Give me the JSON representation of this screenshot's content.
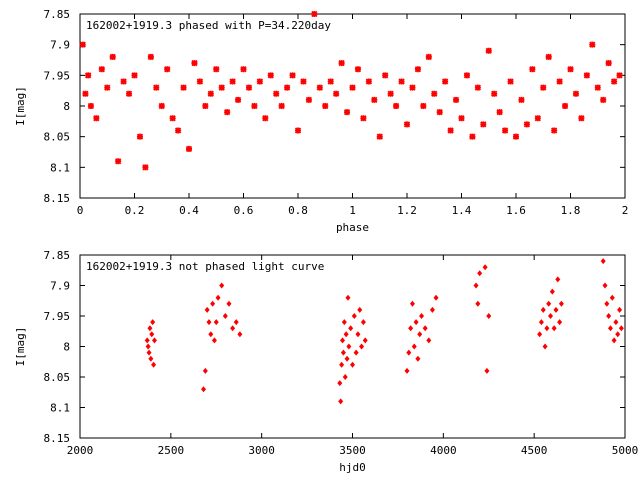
{
  "chart_data": [
    {
      "type": "scatter",
      "title": "162002+1919.3 phased with P=34.220day",
      "xlabel": "phase",
      "ylabel": "I[mag]",
      "xlim": [
        0,
        2
      ],
      "ylim": [
        7.85,
        8.15
      ],
      "y_inverted": true,
      "x_ticks": [
        0,
        0.2,
        0.4,
        0.6,
        0.8,
        1,
        1.2,
        1.4,
        1.6,
        1.8,
        2
      ],
      "x_tick_labels": [
        "0",
        "0.2",
        "0.4",
        "0.6",
        "0.8",
        "1",
        "1.2",
        "1.4",
        "1.6",
        "1.8",
        "2"
      ],
      "y_ticks": [
        7.85,
        7.9,
        7.95,
        8,
        8.05,
        8.1,
        8.15
      ],
      "y_tick_labels": [
        "7.85",
        "7.9",
        "7.95",
        "8",
        "8.05",
        "8.1",
        "8.15"
      ],
      "marker": "x-cross",
      "color": "#ff0000",
      "points": [
        [
          0.01,
          7.9
        ],
        [
          0.03,
          7.95
        ],
        [
          0.02,
          7.98
        ],
        [
          0.04,
          8.0
        ],
        [
          0.06,
          8.02
        ],
        [
          0.08,
          7.94
        ],
        [
          0.1,
          7.97
        ],
        [
          0.12,
          7.92
        ],
        [
          0.14,
          8.09
        ],
        [
          0.16,
          7.96
        ],
        [
          0.18,
          7.98
        ],
        [
          0.2,
          7.95
        ],
        [
          0.22,
          8.05
        ],
        [
          0.24,
          8.1
        ],
        [
          0.26,
          7.92
        ],
        [
          0.28,
          7.97
        ],
        [
          0.3,
          8.0
        ],
        [
          0.32,
          7.94
        ],
        [
          0.34,
          8.02
        ],
        [
          0.36,
          8.04
        ],
        [
          0.38,
          7.97
        ],
        [
          0.4,
          8.07
        ],
        [
          0.42,
          7.93
        ],
        [
          0.44,
          7.96
        ],
        [
          0.46,
          8.0
        ],
        [
          0.48,
          7.98
        ],
        [
          0.5,
          7.94
        ],
        [
          0.52,
          7.97
        ],
        [
          0.54,
          8.01
        ],
        [
          0.56,
          7.96
        ],
        [
          0.58,
          7.99
        ],
        [
          0.6,
          7.94
        ],
        [
          0.62,
          7.97
        ],
        [
          0.64,
          8.0
        ],
        [
          0.66,
          7.96
        ],
        [
          0.68,
          8.02
        ],
        [
          0.7,
          7.95
        ],
        [
          0.72,
          7.98
        ],
        [
          0.74,
          8.0
        ],
        [
          0.76,
          7.97
        ],
        [
          0.78,
          7.95
        ],
        [
          0.8,
          8.04
        ],
        [
          0.82,
          7.96
        ],
        [
          0.84,
          7.99
        ],
        [
          0.86,
          7.85
        ],
        [
          0.88,
          7.97
        ],
        [
          0.9,
          8.0
        ],
        [
          0.92,
          7.96
        ],
        [
          0.94,
          7.98
        ],
        [
          0.96,
          7.93
        ],
        [
          0.98,
          8.01
        ],
        [
          1.0,
          7.97
        ],
        [
          1.02,
          7.94
        ],
        [
          1.04,
          8.02
        ],
        [
          1.06,
          7.96
        ],
        [
          1.08,
          7.99
        ],
        [
          1.1,
          8.05
        ],
        [
          1.12,
          7.95
        ],
        [
          1.14,
          7.98
        ],
        [
          1.16,
          8.0
        ],
        [
          1.18,
          7.96
        ],
        [
          1.2,
          8.03
        ],
        [
          1.22,
          7.97
        ],
        [
          1.24,
          7.94
        ],
        [
          1.26,
          8.0
        ],
        [
          1.28,
          7.92
        ],
        [
          1.3,
          7.98
        ],
        [
          1.32,
          8.01
        ],
        [
          1.34,
          7.96
        ],
        [
          1.36,
          8.04
        ],
        [
          1.38,
          7.99
        ],
        [
          1.4,
          8.02
        ],
        [
          1.42,
          7.95
        ],
        [
          1.44,
          8.05
        ],
        [
          1.46,
          7.97
        ],
        [
          1.48,
          8.03
        ],
        [
          1.5,
          7.91
        ],
        [
          1.52,
          7.98
        ],
        [
          1.54,
          8.01
        ],
        [
          1.56,
          8.04
        ],
        [
          1.58,
          7.96
        ],
        [
          1.6,
          8.05
        ],
        [
          1.62,
          7.99
        ],
        [
          1.64,
          8.03
        ],
        [
          1.66,
          7.94
        ],
        [
          1.68,
          8.02
        ],
        [
          1.7,
          7.97
        ],
        [
          1.72,
          7.92
        ],
        [
          1.74,
          8.04
        ],
        [
          1.76,
          7.96
        ],
        [
          1.78,
          8.0
        ],
        [
          1.8,
          7.94
        ],
        [
          1.82,
          7.98
        ],
        [
          1.84,
          8.02
        ],
        [
          1.86,
          7.95
        ],
        [
          1.88,
          7.9
        ],
        [
          1.9,
          7.97
        ],
        [
          1.92,
          7.99
        ],
        [
          1.94,
          7.93
        ],
        [
          1.96,
          7.96
        ],
        [
          1.98,
          7.95
        ]
      ]
    },
    {
      "type": "scatter",
      "title": "162002+1919.3 not phased light curve",
      "xlabel": "hjd0",
      "ylabel": "I[mag]",
      "xlim": [
        2000,
        5000
      ],
      "ylim": [
        7.85,
        8.15
      ],
      "y_inverted": true,
      "x_ticks": [
        2000,
        2500,
        3000,
        3500,
        4000,
        4500,
        5000
      ],
      "x_tick_labels": [
        "2000",
        "2500",
        "3000",
        "3500",
        "4000",
        "4500",
        "5000"
      ],
      "y_ticks": [
        7.85,
        7.9,
        7.95,
        8,
        8.05,
        8.1,
        8.15
      ],
      "y_tick_labels": [
        "7.85",
        "7.9",
        "7.95",
        "8",
        "8.05",
        "8.1",
        "8.15"
      ],
      "marker": "diamond",
      "color": "#ff0000",
      "points": [
        [
          2370,
          7.99
        ],
        [
          2375,
          8.0
        ],
        [
          2380,
          8.01
        ],
        [
          2385,
          7.97
        ],
        [
          2390,
          8.02
        ],
        [
          2395,
          7.98
        ],
        [
          2400,
          7.96
        ],
        [
          2405,
          8.03
        ],
        [
          2410,
          7.99
        ],
        [
          2680,
          8.07
        ],
        [
          2690,
          8.04
        ],
        [
          2700,
          7.94
        ],
        [
          2710,
          7.96
        ],
        [
          2720,
          7.98
        ],
        [
          2730,
          7.93
        ],
        [
          2740,
          7.99
        ],
        [
          2750,
          7.96
        ],
        [
          2760,
          7.92
        ],
        [
          2780,
          7.9
        ],
        [
          2800,
          7.95
        ],
        [
          2820,
          7.93
        ],
        [
          2840,
          7.97
        ],
        [
          2860,
          7.96
        ],
        [
          2880,
          7.98
        ],
        [
          3430,
          8.06
        ],
        [
          3435,
          8.09
        ],
        [
          3440,
          8.03
        ],
        [
          3445,
          7.99
        ],
        [
          3450,
          8.01
        ],
        [
          3455,
          7.96
        ],
        [
          3460,
          8.05
        ],
        [
          3465,
          7.98
        ],
        [
          3470,
          8.02
        ],
        [
          3475,
          7.92
        ],
        [
          3480,
          8.0
        ],
        [
          3490,
          7.97
        ],
        [
          3500,
          8.03
        ],
        [
          3510,
          7.95
        ],
        [
          3520,
          8.01
        ],
        [
          3530,
          7.98
        ],
        [
          3540,
          7.94
        ],
        [
          3550,
          8.0
        ],
        [
          3560,
          7.96
        ],
        [
          3570,
          7.99
        ],
        [
          3800,
          8.04
        ],
        [
          3810,
          8.01
        ],
        [
          3820,
          7.97
        ],
        [
          3830,
          7.93
        ],
        [
          3840,
          8.0
        ],
        [
          3850,
          7.96
        ],
        [
          3860,
          8.02
        ],
        [
          3870,
          7.98
        ],
        [
          3880,
          7.95
        ],
        [
          3900,
          7.97
        ],
        [
          3920,
          7.99
        ],
        [
          3940,
          7.94
        ],
        [
          3960,
          7.92
        ],
        [
          4180,
          7.9
        ],
        [
          4190,
          7.93
        ],
        [
          4200,
          7.88
        ],
        [
          4230,
          7.87
        ],
        [
          4240,
          8.04
        ],
        [
          4250,
          7.95
        ],
        [
          4530,
          7.98
        ],
        [
          4540,
          7.96
        ],
        [
          4550,
          7.94
        ],
        [
          4560,
          8.0
        ],
        [
          4570,
          7.97
        ],
        [
          4580,
          7.93
        ],
        [
          4590,
          7.95
        ],
        [
          4600,
          7.91
        ],
        [
          4610,
          7.97
        ],
        [
          4620,
          7.94
        ],
        [
          4630,
          7.89
        ],
        [
          4640,
          7.96
        ],
        [
          4650,
          7.93
        ],
        [
          4880,
          7.86
        ],
        [
          4890,
          7.9
        ],
        [
          4900,
          7.93
        ],
        [
          4910,
          7.95
        ],
        [
          4920,
          7.97
        ],
        [
          4930,
          7.92
        ],
        [
          4940,
          7.99
        ],
        [
          4950,
          7.96
        ],
        [
          4960,
          7.98
        ],
        [
          4970,
          7.94
        ],
        [
          4980,
          7.97
        ]
      ]
    }
  ]
}
